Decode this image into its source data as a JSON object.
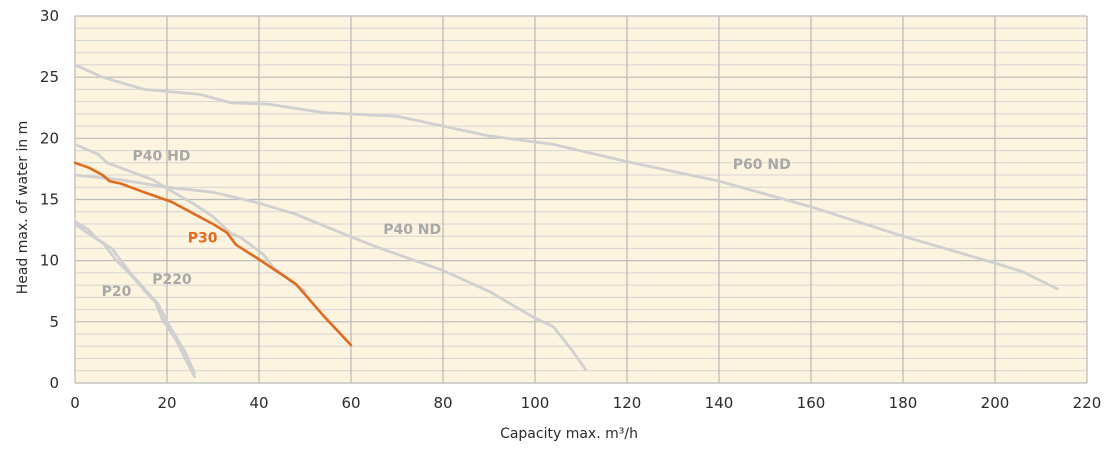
{
  "chart_data": {
    "type": "line",
    "xlabel": "Capacity max. m³/h",
    "ylabel": "Head max. of water in m",
    "xlim": [
      0,
      220
    ],
    "ylim": [
      0,
      30
    ],
    "x_ticks": [
      0,
      20,
      40,
      60,
      80,
      100,
      120,
      140,
      160,
      180,
      200,
      220
    ],
    "y_ticks": [
      0,
      5,
      10,
      15,
      20,
      25,
      30
    ],
    "grid": true,
    "minor_grid_y_step": 1,
    "colors": {
      "background": "#fdf4e0",
      "grid_major": "#b9b9b9",
      "grid_minor": "#d4d4d4",
      "series_gray": "#d0d0d0",
      "highlight": "#e06a1e",
      "label_gray": "#a8a8a8"
    },
    "series": [
      {
        "name": "P60 ND",
        "color": "#d0d0d0",
        "label_at": [
          143,
          17.5
        ],
        "points": [
          [
            0,
            26
          ],
          [
            6,
            25
          ],
          [
            15,
            24
          ],
          [
            27,
            23.6
          ],
          [
            34,
            22.9
          ],
          [
            42,
            22.8
          ],
          [
            54,
            22.1
          ],
          [
            70,
            21.8
          ],
          [
            90,
            20.2
          ],
          [
            104,
            19.5
          ],
          [
            120,
            18.1
          ],
          [
            140,
            16.5
          ],
          [
            160,
            14.4
          ],
          [
            180,
            12
          ],
          [
            200,
            9.8
          ],
          [
            206,
            9.1
          ],
          [
            213.5,
            7.7
          ]
        ]
      },
      {
        "name": "P40 ND",
        "color": "#d0d0d0",
        "label_at": [
          67,
          12.2
        ],
        "points": [
          [
            0,
            17
          ],
          [
            10,
            16.6
          ],
          [
            20,
            16
          ],
          [
            30,
            15.6
          ],
          [
            40,
            14.7
          ],
          [
            48,
            13.8
          ],
          [
            55,
            12.7
          ],
          [
            65,
            11.2
          ],
          [
            80,
            9.2
          ],
          [
            90,
            7.5
          ],
          [
            100,
            5.3
          ],
          [
            104,
            4.6
          ],
          [
            108,
            2.7
          ],
          [
            111,
            1.1
          ]
        ]
      },
      {
        "name": "P40 HD",
        "color": "#d0d0d0",
        "label_at": [
          12.5,
          18.2
        ],
        "points": [
          [
            0,
            19.5
          ],
          [
            5,
            18.7
          ],
          [
            7,
            18
          ],
          [
            12,
            17.3
          ],
          [
            17,
            16.6
          ],
          [
            20,
            15.9
          ],
          [
            26,
            14.6
          ],
          [
            30,
            13.6
          ],
          [
            34,
            12.2
          ],
          [
            36,
            11.9
          ],
          [
            41,
            10.5
          ],
          [
            43,
            9.5
          ],
          [
            48,
            8
          ],
          [
            50,
            7.5
          ]
        ]
      },
      {
        "name": "P30",
        "color": "#e06a1e",
        "label_at": [
          24.5,
          11.5
        ],
        "points": [
          [
            0,
            18
          ],
          [
            3,
            17.6
          ],
          [
            6,
            17
          ],
          [
            7.5,
            16.5
          ],
          [
            10,
            16.3
          ],
          [
            15,
            15.6
          ],
          [
            21,
            14.8
          ],
          [
            26,
            13.8
          ],
          [
            30,
            13
          ],
          [
            33,
            12.3
          ],
          [
            35,
            11.3
          ],
          [
            40,
            10.1
          ],
          [
            48,
            8.1
          ],
          [
            54,
            5.5
          ],
          [
            60,
            3.1
          ]
        ]
      },
      {
        "name": "P220",
        "color": "#d0d0d0",
        "label_at": [
          16.8,
          8.1
        ],
        "points": [
          [
            0,
            13.2
          ],
          [
            3,
            12.5
          ],
          [
            5,
            11.7
          ],
          [
            8,
            11
          ],
          [
            12,
            9
          ],
          [
            18,
            6.5
          ],
          [
            20,
            5
          ],
          [
            24,
            2.5
          ],
          [
            26,
            0.8
          ]
        ]
      },
      {
        "name": "P20",
        "color": "#d0d0d0",
        "label_at": [
          5.8,
          7.1
        ],
        "points": [
          [
            0,
            13
          ],
          [
            3,
            12.2
          ],
          [
            6,
            11.5
          ],
          [
            9,
            10
          ],
          [
            12,
            8.9
          ],
          [
            15,
            7.6
          ],
          [
            17.5,
            6.6
          ],
          [
            19,
            5.2
          ],
          [
            22,
            3.5
          ],
          [
            24.5,
            1.6
          ],
          [
            26,
            0.5
          ]
        ]
      }
    ],
    "draw_order": [
      "P60 ND",
      "P40 ND",
      "P40 HD",
      "P220",
      "P20",
      "P30"
    ]
  }
}
